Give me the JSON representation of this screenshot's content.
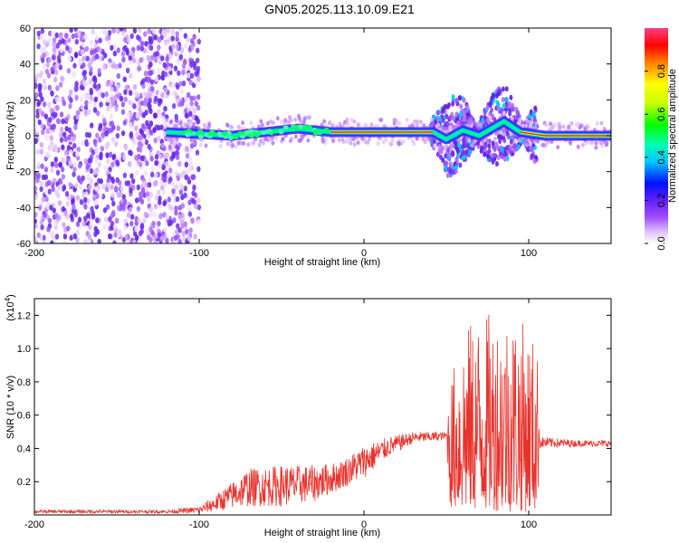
{
  "title": "GN05.2025.113.10.09.E21",
  "colors": {
    "snr_line": "#e8332d",
    "axis": "#000000"
  },
  "colorbar": {
    "label": "Normalized spectral amplitude",
    "ticks": [
      "0.0",
      "0.2",
      "0.4",
      "0.6",
      "0.8"
    ],
    "tick_values": [
      0.0,
      0.2,
      0.4,
      0.6,
      0.8
    ],
    "range": [
      0,
      1
    ]
  },
  "chart_data": [
    {
      "type": "heatmap",
      "title": "GN05.2025.113.10.09.E21",
      "xlabel": "Height of straight line (km)",
      "ylabel": "Frequency (Hz)",
      "xlim": [
        -200,
        150
      ],
      "ylim": [
        -60,
        60
      ],
      "xticks": [
        -200,
        -100,
        0,
        100
      ],
      "xtick_labels": [
        "-200",
        "-100",
        "0",
        "100"
      ],
      "yticks": [
        -60,
        -40,
        -20,
        0,
        20,
        40,
        60
      ],
      "ytick_labels": [
        "-60",
        "-40",
        "-20",
        "0",
        "20",
        "40",
        "60"
      ],
      "ridge": [
        {
          "x": -120,
          "y": 2
        },
        {
          "x": -100,
          "y": 1
        },
        {
          "x": -80,
          "y": 0
        },
        {
          "x": -60,
          "y": 2
        },
        {
          "x": -40,
          "y": 4
        },
        {
          "x": -20,
          "y": 2
        },
        {
          "x": 0,
          "y": 2
        },
        {
          "x": 20,
          "y": 2
        },
        {
          "x": 42,
          "y": 2
        },
        {
          "x": 50,
          "y": -2
        },
        {
          "x": 60,
          "y": 3
        },
        {
          "x": 70,
          "y": 0
        },
        {
          "x": 85,
          "y": 8
        },
        {
          "x": 95,
          "y": 2
        },
        {
          "x": 110,
          "y": 0
        },
        {
          "x": 150,
          "y": 0
        }
      ]
    },
    {
      "type": "line",
      "xlabel": "Height of straight line (km)",
      "ylabel": "SNR (10 * v/v)",
      "yscale_label": "(x10",
      "yscale_exp": "4",
      "xlim": [
        -200,
        150
      ],
      "ylim": [
        0,
        1.3
      ],
      "xticks": [
        -200,
        -100,
        0,
        100
      ],
      "xtick_labels": [
        "-200",
        "-100",
        "0",
        "100"
      ],
      "yticks": [
        0.2,
        0.4,
        0.6,
        0.8,
        1.0,
        1.2
      ],
      "ytick_labels": [
        "0.2",
        "0.4",
        "0.6",
        "0.8",
        "1.0",
        "1.2"
      ],
      "series": [
        {
          "values_envelope": [
            {
              "x": -200,
              "lo": 0.01,
              "hi": 0.03
            },
            {
              "x": -120,
              "lo": 0.01,
              "hi": 0.03
            },
            {
              "x": -100,
              "lo": 0.01,
              "hi": 0.05
            },
            {
              "x": -90,
              "lo": 0.02,
              "hi": 0.12
            },
            {
              "x": -70,
              "lo": 0.05,
              "hi": 0.28
            },
            {
              "x": -50,
              "lo": 0.05,
              "hi": 0.3
            },
            {
              "x": -30,
              "lo": 0.08,
              "hi": 0.3
            },
            {
              "x": -15,
              "lo": 0.15,
              "hi": 0.32
            },
            {
              "x": 0,
              "lo": 0.22,
              "hi": 0.42
            },
            {
              "x": 15,
              "lo": 0.35,
              "hi": 0.47
            },
            {
              "x": 30,
              "lo": 0.43,
              "hi": 0.5
            },
            {
              "x": 50,
              "lo": 0.45,
              "hi": 0.5
            },
            {
              "x": 52,
              "lo": 0.05,
              "hi": 0.8
            },
            {
              "x": 60,
              "lo": 0.02,
              "hi": 1.12
            },
            {
              "x": 70,
              "lo": 0.03,
              "hi": 1.2
            },
            {
              "x": 90,
              "lo": 0.02,
              "hi": 1.25
            },
            {
              "x": 105,
              "lo": 0.02,
              "hi": 1.05
            },
            {
              "x": 107,
              "lo": 0.4,
              "hi": 0.47
            },
            {
              "x": 130,
              "lo": 0.41,
              "hi": 0.45
            },
            {
              "x": 150,
              "lo": 0.41,
              "hi": 0.45
            }
          ]
        }
      ]
    }
  ]
}
